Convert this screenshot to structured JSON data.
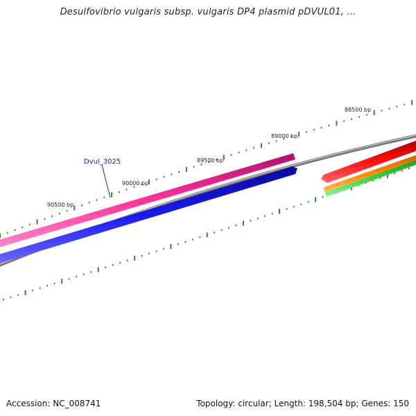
{
  "title": "Desulfovibrio vulgaris subsp. vulgaris DP4 plasmid pDVUL01, ...",
  "ruler": {
    "color": "#2a8a2a",
    "labels": [
      "88500 bp",
      "89000 bp",
      "89500 bp",
      "90000 bp",
      "90500 bp"
    ]
  },
  "gene_label": {
    "text": "Dvul_3025",
    "color": "#1a1acc"
  },
  "tracks": {
    "pink": "#ff3399",
    "blue": "#1a1aee",
    "backbone": "#888888",
    "red": "#ee1111",
    "orange": "#ff8800",
    "green": "#44cc44"
  },
  "footer": {
    "accession": "Accession: NC_008741",
    "summary": "Topology: circular; Length: 198,504 bp; Genes: 150"
  }
}
